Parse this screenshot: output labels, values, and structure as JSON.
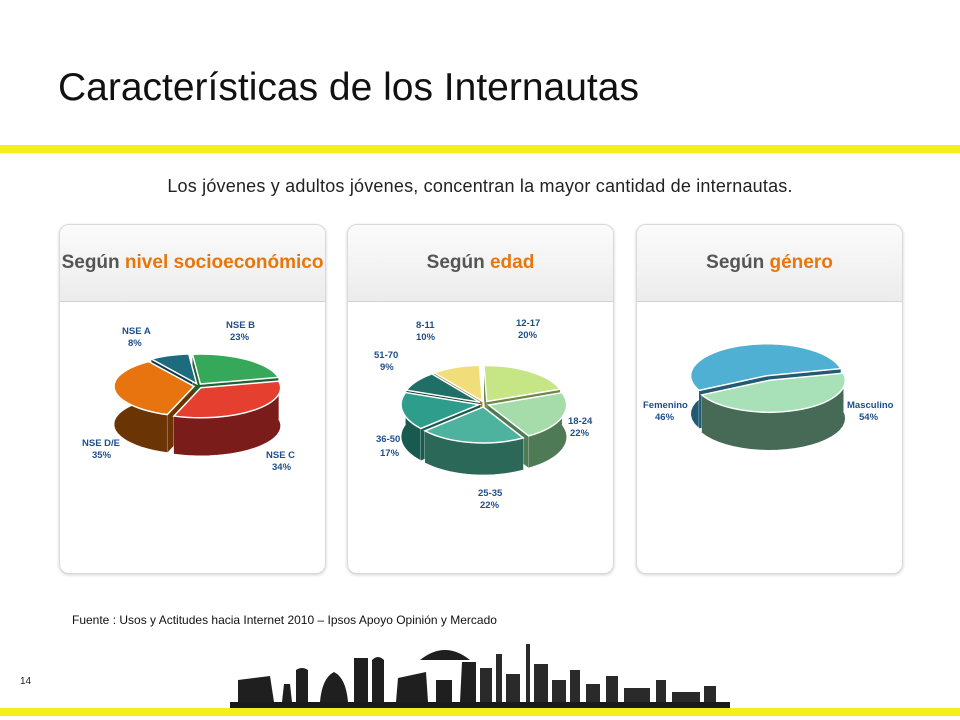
{
  "slide": {
    "title": "Características de los Internautas",
    "subtitle": "Los jóvenes y adultos jóvenes, concentran la mayor cantidad de internautas.",
    "source": "Fuente : Usos y Actitudes hacia Internet 2010 – Ipsos Apoyo Opinión y Mercado",
    "page_number": "14"
  },
  "cards": [
    {
      "prefix": "Según",
      "highlight": "nivel socioeconómico"
    },
    {
      "prefix": "Según",
      "highlight": "edad"
    },
    {
      "prefix": "Según",
      "highlight": "género"
    }
  ],
  "colors": {
    "accent_yellow": "#f5ef19",
    "highlight_orange": "#e8760a",
    "label_blue": "#1d4e8c"
  },
  "chart_data": [
    {
      "type": "pie",
      "categories": [
        "NSE A",
        "NSE B",
        "NSE C",
        "NSE D/E"
      ],
      "values": [
        8,
        23,
        34,
        35
      ],
      "value_labels": [
        "8%",
        "23%",
        "34%",
        "35%"
      ],
      "colors": [
        "#1e6b80",
        "#35a85a",
        "#e5402f",
        "#e8740f"
      ],
      "side_colors": [
        "#0f3b48",
        "#1f6034",
        "#7a1d1a",
        "#6b3404"
      ]
    },
    {
      "type": "pie",
      "categories": [
        "8-11",
        "12-17",
        "18-24",
        "25-35",
        "36-50",
        "51-70"
      ],
      "values": [
        10,
        20,
        22,
        22,
        17,
        9
      ],
      "value_labels": [
        "10%",
        "20%",
        "22%",
        "22%",
        "17%",
        "9%"
      ],
      "colors": [
        "#f1de7a",
        "#c6e585",
        "#a6dcaa",
        "#4db39e",
        "#2e9d8b",
        "#1f6f66"
      ],
      "side_colors": [
        "#8b7e36",
        "#6f8746",
        "#4e7a55",
        "#2b6858",
        "#195a50",
        "#0f3c37"
      ]
    },
    {
      "type": "pie",
      "categories": [
        "Masculino",
        "Femenino"
      ],
      "values": [
        54,
        46
      ],
      "value_labels": [
        "54%",
        "46%"
      ],
      "colors": [
        "#4fb0d3",
        "#a8e0b8"
      ],
      "side_colors": [
        "#215a72",
        "#466a55"
      ]
    }
  ]
}
